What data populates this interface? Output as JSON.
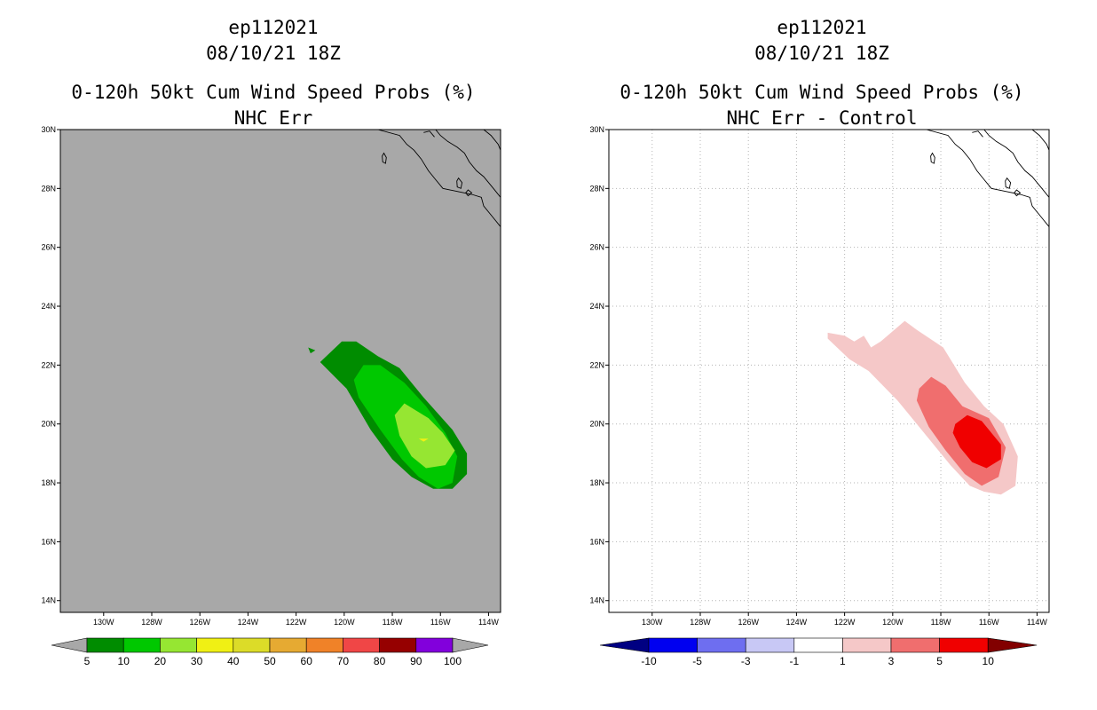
{
  "left_panel": {
    "case_id": "ep112021",
    "datetime": "08/10/21 18Z",
    "product": "0-120h 50kt Cum Wind Speed Probs (%)",
    "subtitle": "NHC Err"
  },
  "right_panel": {
    "case_id": "ep112021",
    "datetime": "08/10/21 18Z",
    "product": "0-120h 50kt Cum Wind Speed Probs (%)",
    "subtitle": "NHC Err - Control"
  },
  "chart_data": [
    {
      "type": "filled-contour-map",
      "title": "0-120h 50kt Cum Wind Speed Probs (%)",
      "subtitle": "NHC Err",
      "x_ticks": [
        "130W",
        "128W",
        "126W",
        "124W",
        "122W",
        "120W",
        "118W",
        "116W",
        "114W"
      ],
      "y_ticks": [
        "14N",
        "16N",
        "18N",
        "20N",
        "22N",
        "24N",
        "26N",
        "28N",
        "30N"
      ],
      "lon_range": [
        -131.8,
        -113.5
      ],
      "lat_range": [
        13.6,
        30.0
      ],
      "background": "#a8a8a8",
      "grid": false,
      "legend_levels": [
        "5",
        "10",
        "20",
        "30",
        "40",
        "50",
        "60",
        "70",
        "80",
        "90",
        "100"
      ],
      "legend_colors": [
        "#008c00",
        "#00c800",
        "#96e632",
        "#f0f014",
        "#dcdc28",
        "#e6aa32",
        "#f08228",
        "#f04646",
        "#960000",
        "#8200dc"
      ],
      "regions": [
        {
          "level": "5-10",
          "color": "#008c00",
          "points": [
            [
              -121.0,
              22.1
            ],
            [
              -120.1,
              22.8
            ],
            [
              -119.5,
              22.8
            ],
            [
              -118.6,
              22.3
            ],
            [
              -117.7,
              21.9
            ],
            [
              -116.7,
              20.9
            ],
            [
              -115.5,
              19.8
            ],
            [
              -114.9,
              19.0
            ],
            [
              -114.9,
              18.3
            ],
            [
              -115.5,
              17.8
            ],
            [
              -116.3,
              17.8
            ],
            [
              -117.2,
              18.2
            ],
            [
              -118.0,
              18.8
            ],
            [
              -118.9,
              19.8
            ],
            [
              -119.9,
              21.2
            ]
          ]
        },
        {
          "level": "10-20",
          "color": "#00c800",
          "points": [
            [
              -119.6,
              21.5
            ],
            [
              -119.2,
              22.0
            ],
            [
              -118.5,
              22.0
            ],
            [
              -117.5,
              21.4
            ],
            [
              -116.6,
              20.6
            ],
            [
              -115.8,
              19.7
            ],
            [
              -115.3,
              18.9
            ],
            [
              -115.5,
              18.0
            ],
            [
              -116.1,
              17.8
            ],
            [
              -116.9,
              18.2
            ],
            [
              -117.6,
              18.8
            ],
            [
              -118.5,
              19.8
            ],
            [
              -119.4,
              20.9
            ]
          ]
        },
        {
          "level": "20-30",
          "color": "#96e632",
          "points": [
            [
              -117.9,
              20.3
            ],
            [
              -117.5,
              20.7
            ],
            [
              -116.5,
              20.2
            ],
            [
              -115.9,
              19.7
            ],
            [
              -115.4,
              19.1
            ],
            [
              -115.8,
              18.6
            ],
            [
              -116.6,
              18.5
            ],
            [
              -117.2,
              18.9
            ],
            [
              -117.7,
              19.6
            ]
          ]
        },
        {
          "level": "30-40",
          "color": "#f0f014",
          "points": [
            [
              -116.9,
              19.5
            ],
            [
              -116.5,
              19.5
            ],
            [
              -116.7,
              19.4
            ]
          ]
        },
        {
          "level": "5-10",
          "color": "#008c00",
          "points": [
            [
              -121.5,
              22.6
            ],
            [
              -121.2,
              22.5
            ],
            [
              -121.4,
              22.4
            ]
          ]
        }
      ],
      "map_features": [
        "North America coastline (Baja California)",
        "Guadalupe Island",
        "Cedros Island"
      ]
    },
    {
      "type": "filled-contour-map",
      "title": "0-120h 50kt Cum Wind Speed Probs (%)",
      "subtitle": "NHC Err - Control",
      "x_ticks": [
        "130W",
        "128W",
        "126W",
        "124W",
        "122W",
        "120W",
        "118W",
        "116W",
        "114W"
      ],
      "y_ticks": [
        "14N",
        "16N",
        "18N",
        "20N",
        "22N",
        "24N",
        "26N",
        "28N",
        "30N"
      ],
      "lon_range": [
        -131.8,
        -113.5
      ],
      "lat_range": [
        13.6,
        30.0
      ],
      "background": "#ffffff",
      "grid": true,
      "legend_levels": [
        "-10",
        "-5",
        "-3",
        "-1",
        "1",
        "3",
        "5",
        "10"
      ],
      "legend_colors": [
        "#000082",
        "#0000f0",
        "#6e6ef0",
        "#c8c8f5",
        "#ffffff",
        "#f5c8c8",
        "#f06e6e",
        "#f00000",
        "#820000"
      ],
      "regions": [
        {
          "level": "1-3",
          "color": "#f5c8c8",
          "points": [
            [
              -122.7,
              22.9
            ],
            [
              -122.7,
              23.1
            ],
            [
              -122.0,
              23.0
            ],
            [
              -121.6,
              22.8
            ],
            [
              -121.2,
              23.0
            ],
            [
              -120.9,
              22.6
            ],
            [
              -120.5,
              22.8
            ],
            [
              -119.5,
              23.5
            ],
            [
              -119.0,
              23.2
            ],
            [
              -117.9,
              22.6
            ],
            [
              -117.0,
              21.4
            ],
            [
              -116.2,
              20.6
            ],
            [
              -115.4,
              20.0
            ],
            [
              -114.8,
              18.9
            ],
            [
              -114.9,
              17.9
            ],
            [
              -115.5,
              17.6
            ],
            [
              -116.2,
              17.7
            ],
            [
              -116.8,
              17.9
            ],
            [
              -117.6,
              18.6
            ],
            [
              -118.6,
              19.6
            ],
            [
              -119.8,
              20.8
            ],
            [
              -121.0,
              21.8
            ],
            [
              -121.8,
              22.2
            ]
          ]
        },
        {
          "level": "3-5",
          "color": "#f06e6e",
          "points": [
            [
              -118.9,
              21.2
            ],
            [
              -118.4,
              21.6
            ],
            [
              -117.8,
              21.3
            ],
            [
              -117.1,
              20.6
            ],
            [
              -116.0,
              20.2
            ],
            [
              -115.3,
              19.2
            ],
            [
              -115.6,
              18.2
            ],
            [
              -116.3,
              17.9
            ],
            [
              -117.0,
              18.3
            ],
            [
              -117.8,
              19.1
            ],
            [
              -118.5,
              19.9
            ],
            [
              -119.0,
              20.8
            ]
          ]
        },
        {
          "level": "5-10",
          "color": "#f00000",
          "points": [
            [
              -117.4,
              20.0
            ],
            [
              -116.9,
              20.3
            ],
            [
              -116.3,
              20.1
            ],
            [
              -115.5,
              19.3
            ],
            [
              -115.5,
              18.8
            ],
            [
              -116.1,
              18.5
            ],
            [
              -116.7,
              18.7
            ],
            [
              -117.2,
              19.2
            ],
            [
              -117.5,
              19.7
            ]
          ]
        }
      ],
      "map_features": [
        "North America coastline (Baja California)",
        "Guadalupe Island",
        "Cedros Island"
      ]
    }
  ]
}
